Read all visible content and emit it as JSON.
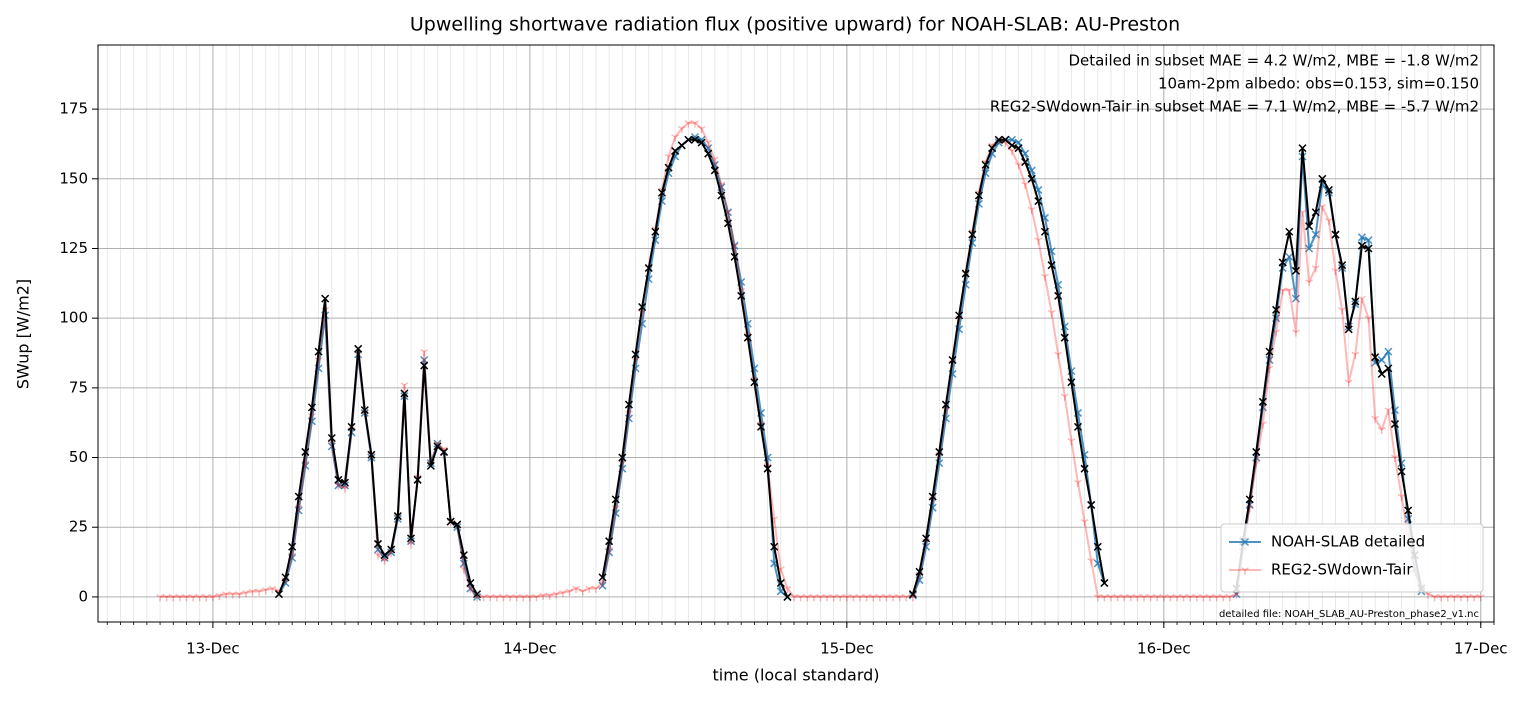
{
  "chart_data": {
    "type": "line",
    "title": "Upwelling shortwave radiation flux (positive upward) for NOAH-SLAB: AU-Preston",
    "x_label": "time (local standard)",
    "y_label": "SWup [W/m2]",
    "annotations": [
      {
        "text": "Detailed in subset MAE = 4.2 W/m2, MBE = -1.8 W/m2",
        "color": "#1f77b4"
      },
      {
        "text": "10am-2pm albedo: obs=0.153, sim=0.150",
        "color": "#000000"
      },
      {
        "text": "REG2-SWdown-Tair in subset MAE = 7.1 W/m2, MBE = -5.7 W/m2",
        "color": "#ff0000"
      }
    ],
    "footnote": "detailed file: NOAH_SLAB_AU-Preston_phase2_v1.nc",
    "xlim": [
      -8.7,
      97
    ],
    "ylim": [
      -9,
      198
    ],
    "xticks": [
      {
        "value": 0,
        "label": "13-Dec"
      },
      {
        "value": 24,
        "label": "14-Dec"
      },
      {
        "value": 48,
        "label": "15-Dec"
      },
      {
        "value": 72,
        "label": "16-Dec"
      },
      {
        "value": 96,
        "label": "17-Dec"
      }
    ],
    "x_minor_tick_interval": 1,
    "yticks": [
      0,
      25,
      50,
      75,
      100,
      125,
      150,
      175
    ],
    "grid": true,
    "legend": "lower right",
    "x": [
      -4,
      -3.5,
      -3,
      -2.5,
      -2,
      -1.5,
      -1,
      -0.5,
      0,
      0.5,
      1,
      1.5,
      2,
      2.5,
      3,
      3.5,
      4,
      4.5,
      5,
      5.5,
      6,
      6.5,
      7,
      7.5,
      8,
      8.5,
      9,
      9.5,
      10,
      10.5,
      11,
      11.5,
      12,
      12.5,
      13,
      13.5,
      14,
      14.5,
      15,
      15.5,
      16,
      16.5,
      17,
      17.5,
      18,
      18.5,
      19,
      19.5,
      20,
      20.5,
      21,
      21.5,
      22,
      22.5,
      23,
      23.5,
      24,
      24.5,
      25,
      25.5,
      26,
      26.5,
      27,
      27.5,
      28,
      28.5,
      29,
      29.5,
      30,
      30.5,
      31,
      31.5,
      32,
      32.5,
      33,
      33.5,
      34,
      34.5,
      35,
      35.5,
      36,
      36.5,
      37,
      37.5,
      38,
      38.5,
      39,
      39.5,
      40,
      40.5,
      41,
      41.5,
      42,
      42.5,
      43,
      43.5,
      44,
      44.5,
      45,
      45.5,
      46,
      46.5,
      47,
      47.5,
      48,
      48.5,
      49,
      49.5,
      50,
      50.5,
      51,
      51.5,
      52,
      52.5,
      53,
      53.5,
      54,
      54.5,
      55,
      55.5,
      56,
      56.5,
      57,
      57.5,
      58,
      58.5,
      59,
      59.5,
      60,
      60.5,
      61,
      61.5,
      62,
      62.5,
      63,
      63.5,
      64,
      64.5,
      65,
      65.5,
      66,
      66.5,
      67,
      67.5,
      68,
      68.5,
      69,
      69.5,
      70,
      70.5,
      71,
      71.5,
      72,
      72.5,
      73,
      73.5,
      74,
      74.5,
      75,
      75.5,
      76,
      76.5,
      77,
      77.5,
      78,
      78.5,
      79,
      79.5,
      80,
      80.5,
      81,
      81.5,
      82,
      82.5,
      83,
      83.5,
      84,
      84.5,
      85,
      85.5,
      86,
      86.5,
      87,
      87.5,
      88,
      88.5,
      89,
      89.5,
      90,
      90.5,
      91,
      91.5,
      92,
      92.5,
      93,
      93.5,
      94,
      94.5,
      95,
      95.5,
      96
    ],
    "series": [
      {
        "name": "NOAH-SLAB detailed",
        "color": "#1f77b4",
        "alpha": 0.8,
        "marker": "x",
        "values": [
          null,
          null,
          null,
          null,
          null,
          null,
          null,
          null,
          null,
          null,
          null,
          null,
          null,
          null,
          null,
          null,
          null,
          null,
          1,
          5,
          14,
          31,
          47,
          63,
          82,
          101,
          54,
          40,
          40,
          59,
          87,
          66,
          50,
          17,
          14,
          16,
          28,
          72,
          20,
          42,
          85,
          48,
          55,
          52,
          27,
          25,
          12,
          3,
          0,
          null,
          null,
          null,
          null,
          null,
          null,
          null,
          null,
          null,
          null,
          null,
          null,
          null,
          null,
          null,
          null,
          null,
          null,
          4,
          16,
          30,
          46,
          64,
          82,
          98,
          114,
          128,
          142,
          152,
          158,
          162,
          164,
          165,
          164,
          161,
          155,
          147,
          138,
          126,
          113,
          98,
          82,
          66,
          50,
          12,
          2,
          0,
          null,
          null,
          null,
          null,
          null,
          null,
          null,
          null,
          null,
          null,
          null,
          null,
          null,
          null,
          null,
          null,
          null,
          null,
          0.5,
          6,
          18,
          32,
          48,
          64,
          80,
          96,
          112,
          127,
          141,
          152,
          159,
          163,
          164,
          164,
          163,
          159,
          153,
          146,
          136,
          124,
          112,
          97,
          81,
          66,
          51,
          33,
          12,
          5,
          null,
          null,
          null,
          null,
          null,
          null,
          null,
          null,
          null,
          null,
          null,
          null,
          null,
          null,
          null,
          null,
          null,
          null,
          null,
          1,
          18,
          33,
          50,
          68,
          85,
          100,
          118,
          122,
          107,
          158,
          125,
          130,
          148,
          145,
          130,
          118,
          97,
          105,
          129,
          128,
          84,
          85,
          88,
          67,
          48,
          28,
          10,
          2,
          null,
          null,
          null,
          null,
          null,
          null,
          null,
          null,
          null
        ]
      },
      {
        "name": "REG2-SWdown-Tair",
        "color": "#ff0000",
        "alpha": 0.28,
        "marker": "tri_down",
        "values": [
          0,
          0,
          0,
          0,
          0,
          0,
          0,
          0,
          0,
          0.5,
          1,
          1,
          1,
          1.5,
          2,
          2,
          2.5,
          3,
          2,
          6,
          15,
          32,
          48,
          65,
          85,
          103,
          55,
          40,
          39,
          60,
          87,
          66,
          51,
          15,
          13,
          16,
          29,
          76,
          19,
          43,
          88,
          48,
          55,
          53,
          27,
          26,
          10,
          3,
          0,
          0,
          0,
          0,
          0,
          0,
          0,
          0,
          0,
          0,
          0.5,
          0.5,
          1,
          1.5,
          2,
          3,
          2,
          3,
          3,
          5,
          17,
          32,
          48,
          66,
          85,
          102,
          118,
          132,
          146,
          158,
          165,
          168,
          170,
          170,
          168,
          163,
          157,
          148,
          138,
          126,
          110,
          94,
          78,
          62,
          47,
          28,
          10,
          3,
          0,
          0,
          0,
          0,
          0,
          0,
          0,
          0,
          0,
          0,
          0,
          0,
          0,
          0,
          0,
          0,
          0,
          0,
          0,
          8,
          20,
          35,
          51,
          67,
          84,
          100,
          116,
          131,
          145,
          156,
          162,
          164,
          163,
          160,
          155,
          148,
          139,
          128,
          115,
          102,
          87,
          72,
          56,
          41,
          27,
          13,
          0,
          0,
          0,
          0,
          0,
          0,
          0,
          0,
          0,
          0,
          0,
          0,
          0,
          0,
          0,
          0,
          0,
          0,
          0,
          0,
          0,
          1,
          17,
          32,
          48,
          62,
          82,
          95,
          110,
          110,
          95,
          138,
          113,
          118,
          140,
          135,
          117,
          103,
          77,
          87,
          107,
          100,
          64,
          60,
          67,
          50,
          36,
          22,
          9,
          4,
          1,
          0,
          0,
          0,
          0,
          0,
          0,
          0,
          0
        ]
      },
      {
        "color": "#000000",
        "alpha": 1,
        "marker": "x",
        "values": [
          null,
          null,
          null,
          null,
          null,
          null,
          null,
          null,
          null,
          null,
          null,
          null,
          null,
          null,
          null,
          null,
          null,
          null,
          1,
          7,
          18,
          36,
          52,
          68,
          88,
          107,
          57,
          42,
          41,
          61,
          89,
          67,
          51,
          19,
          15,
          17,
          29,
          73,
          21,
          42,
          83,
          47,
          54,
          52,
          27,
          26,
          15,
          5,
          1,
          null,
          null,
          null,
          null,
          null,
          null,
          null,
          null,
          null,
          null,
          null,
          null,
          null,
          null,
          null,
          null,
          null,
          null,
          7,
          20,
          35,
          50,
          69,
          87,
          104,
          118,
          131,
          145,
          154,
          160,
          162,
          164,
          164,
          163,
          159,
          153,
          144,
          134,
          122,
          108,
          93,
          77,
          61,
          46,
          18,
          5,
          0,
          null,
          null,
          null,
          null,
          null,
          null,
          null,
          null,
          null,
          null,
          null,
          null,
          null,
          null,
          null,
          null,
          null,
          null,
          1,
          9,
          21,
          36,
          52,
          69,
          85,
          101,
          116,
          130,
          144,
          155,
          161,
          164,
          164,
          162,
          161,
          156,
          150,
          142,
          131,
          119,
          108,
          93,
          77,
          61,
          46,
          33,
          18,
          5,
          null,
          null,
          null,
          null,
          null,
          null,
          null,
          null,
          null,
          null,
          null,
          null,
          null,
          null,
          null,
          null,
          null,
          null,
          null,
          3,
          20,
          35,
          52,
          70,
          88,
          103,
          120,
          131,
          117,
          161,
          133,
          138,
          150,
          146,
          130,
          119,
          96,
          106,
          126,
          125,
          86,
          80,
          82,
          62,
          45,
          31,
          15,
          3,
          null,
          null,
          null,
          null,
          null,
          null,
          null,
          null,
          null
        ]
      }
    ]
  }
}
